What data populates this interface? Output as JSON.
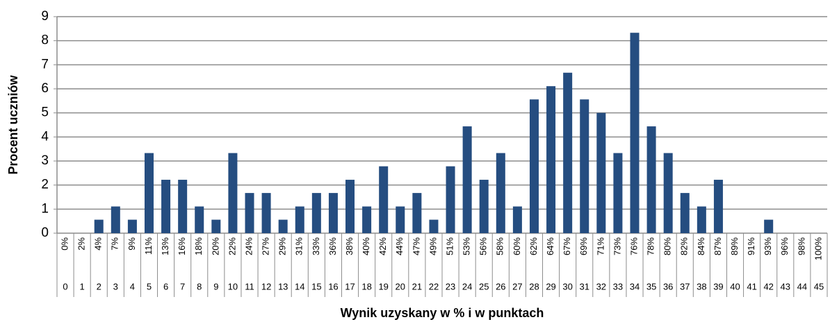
{
  "chart_data": {
    "type": "bar",
    "x_label": "Wynik uzyskany w % i w punktach",
    "y_label": "Procent uczniów",
    "categories": [
      "0",
      "1",
      "2",
      "3",
      "4",
      "5",
      "6",
      "7",
      "8",
      "9",
      "10",
      "11",
      "12",
      "13",
      "14",
      "15",
      "16",
      "17",
      "18",
      "19",
      "20",
      "21",
      "22",
      "23",
      "24",
      "25",
      "26",
      "27",
      "28",
      "29",
      "30",
      "31",
      "32",
      "33",
      "34",
      "35",
      "36",
      "37",
      "38",
      "39",
      "40",
      "41",
      "42",
      "43",
      "44",
      "45"
    ],
    "percent_labels": [
      "0%",
      "2%",
      "4%",
      "7%",
      "9%",
      "11%",
      "13%",
      "16%",
      "18%",
      "20%",
      "22%",
      "24%",
      "27%",
      "29%",
      "31%",
      "33%",
      "36%",
      "38%",
      "40%",
      "42%",
      "44%",
      "47%",
      "49%",
      "51%",
      "53%",
      "56%",
      "58%",
      "60%",
      "62%",
      "64%",
      "67%",
      "69%",
      "71%",
      "73%",
      "76%",
      "78%",
      "80%",
      "82%",
      "84%",
      "87%",
      "89%",
      "91%",
      "93%",
      "96%",
      "98%",
      "100%"
    ],
    "values": [
      0,
      0,
      0.56,
      1.11,
      0.56,
      3.33,
      2.22,
      2.22,
      1.11,
      0.56,
      3.33,
      1.67,
      1.67,
      0.56,
      1.11,
      1.67,
      1.67,
      2.22,
      1.11,
      2.78,
      1.11,
      1.67,
      0.56,
      2.78,
      4.44,
      2.22,
      3.33,
      1.11,
      5.56,
      6.11,
      6.67,
      5.56,
      5.0,
      3.33,
      8.33,
      4.44,
      3.33,
      1.67,
      1.11,
      2.22,
      0,
      0,
      0.56,
      0,
      0,
      0
    ],
    "color": "#254d80",
    "ylim": [
      0,
      9
    ],
    "yticks": [
      0,
      1,
      2,
      3,
      4,
      5,
      6,
      7,
      8,
      9
    ],
    "grid": true
  }
}
